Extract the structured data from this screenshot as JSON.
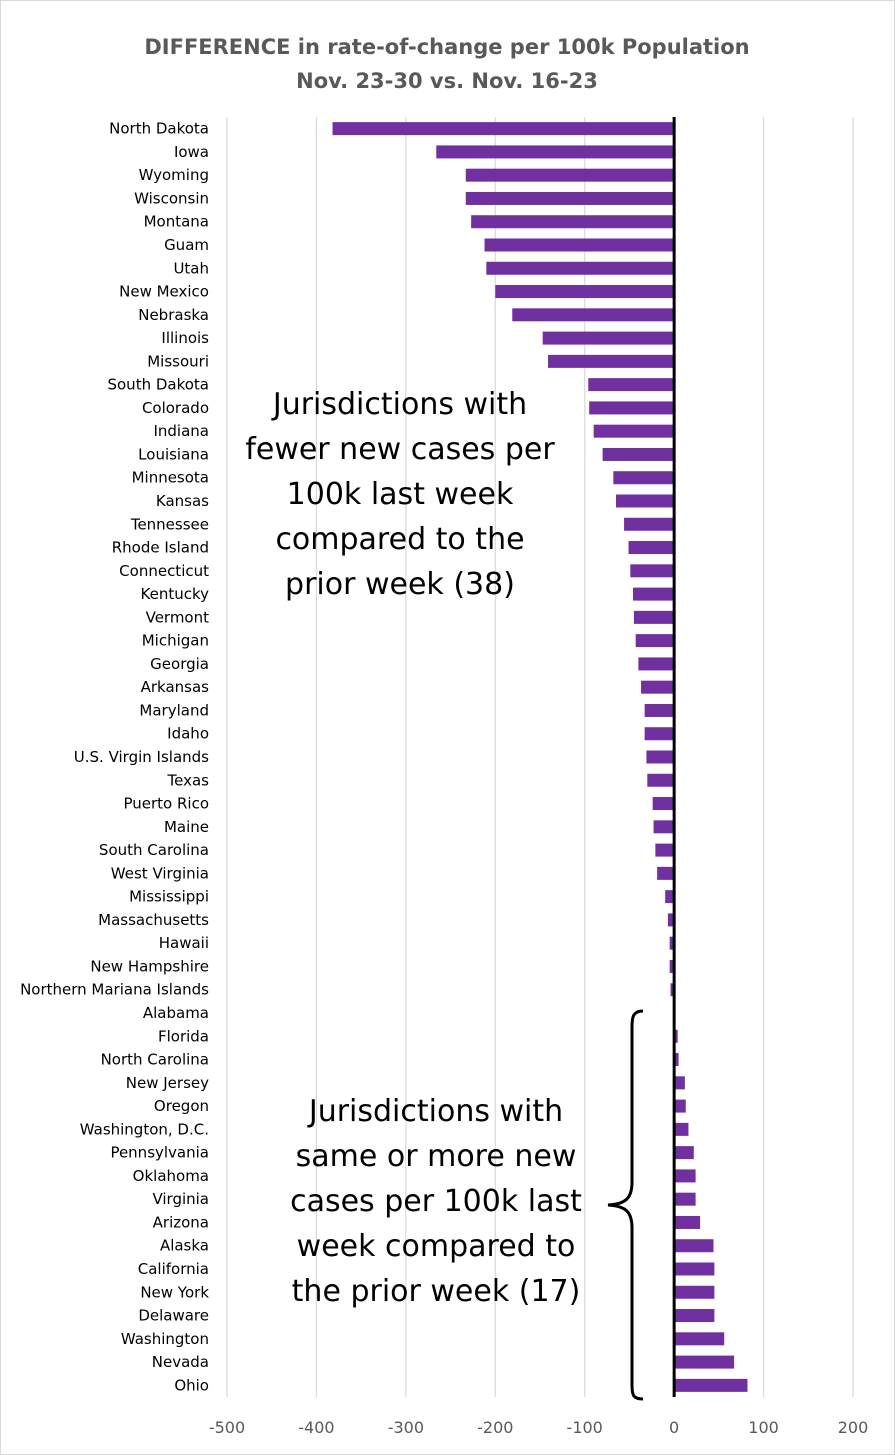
{
  "chart_data": {
    "type": "bar",
    "orientation": "horizontal",
    "title": [
      "DIFFERENCE in rate-of-change per 100k Population",
      "Nov. 23-30 vs. Nov. 16-23"
    ],
    "xlim": [
      -500,
      200
    ],
    "xticks": [
      "-500",
      "-400",
      "-300",
      "-200",
      "-100",
      "0",
      "100",
      "200"
    ],
    "grid": true,
    "bar_color": "#7030a0",
    "categories": [
      "North Dakota",
      "Iowa",
      "Wyoming",
      "Wisconsin",
      "Montana",
      "Guam",
      "Utah",
      "New Mexico",
      "Nebraska",
      "Illinois",
      "Missouri",
      "South Dakota",
      "Colorado",
      "Indiana",
      "Louisiana",
      "Minnesota",
      "Kansas",
      "Tennessee",
      "Rhode Island",
      "Connecticut",
      "Kentucky",
      "Vermont",
      "Michigan",
      "Georgia",
      "Arkansas",
      "Maryland",
      "Idaho",
      "U.S. Virgin Islands",
      "Texas",
      "Puerto Rico",
      "Maine",
      "South Carolina",
      "West Virginia",
      "Mississippi",
      "Massachusetts",
      "Hawaii",
      "New Hampshire",
      "Northern Mariana Islands",
      "Alabama",
      "Florida",
      "North Carolina",
      "New Jersey",
      "Oregon",
      "Washington, D.C.",
      "Pennsylvania",
      "Oklahoma",
      "Virginia",
      "Arizona",
      "Alaska",
      "California",
      "New York",
      "Delaware",
      "Washington",
      "Nevada",
      "Ohio"
    ],
    "values": [
      -382,
      -266,
      -233,
      -233,
      -227,
      -212,
      -210,
      -200,
      -181,
      -147,
      -141,
      -96,
      -95,
      -90,
      -80,
      -68,
      -65,
      -56,
      -51,
      -49,
      -46,
      -45,
      -43,
      -40,
      -37,
      -33,
      -33,
      -31,
      -30,
      -24,
      -23,
      -21,
      -19,
      -10,
      -7,
      -5,
      -5,
      -4,
      0,
      4,
      5,
      12,
      13,
      16,
      22,
      24,
      24,
      29,
      44,
      45,
      45,
      45,
      56,
      67,
      82
    ]
  },
  "annotations": {
    "fewer": [
      "Jurisdictions with",
      "fewer new cases per",
      "100k last week",
      "compared to the",
      "prior week (38)"
    ],
    "more": [
      "Jurisdictions with",
      "same or more new",
      "cases per 100k last",
      "week compared to",
      "the prior week (17)"
    ]
  }
}
